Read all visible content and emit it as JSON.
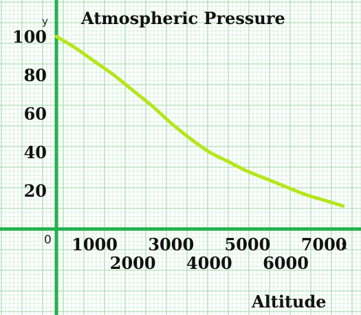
{
  "chart_data": {
    "type": "line",
    "title": "Atmospheric Pressure",
    "xlabel": "Altitude",
    "x_axis_letter": "x",
    "y_axis_letter": "y",
    "origin_label": "0",
    "x_ticks": [
      "1000",
      "2000",
      "3000",
      "4000",
      "5000",
      "6000",
      "7000"
    ],
    "y_ticks": [
      "100",
      "80",
      "60",
      "40",
      "20"
    ],
    "xlim": [
      0,
      7700
    ],
    "ylim": [
      0,
      110
    ],
    "grid": true,
    "series": [
      {
        "x": [
          0,
          500,
          1000,
          1500,
          2000,
          2500,
          3000,
          3500,
          4000,
          4500,
          5000,
          5500,
          6000,
          6500,
          7000,
          7500
        ],
        "y": [
          100,
          94,
          87,
          80,
          72,
          64,
          55,
          47,
          40,
          35,
          30,
          26,
          22,
          18,
          15,
          12
        ]
      }
    ],
    "colors": {
      "line": "#b5e61d",
      "axes": "#22b14c",
      "grid": "#9ad7a6",
      "text": "#111111"
    }
  }
}
